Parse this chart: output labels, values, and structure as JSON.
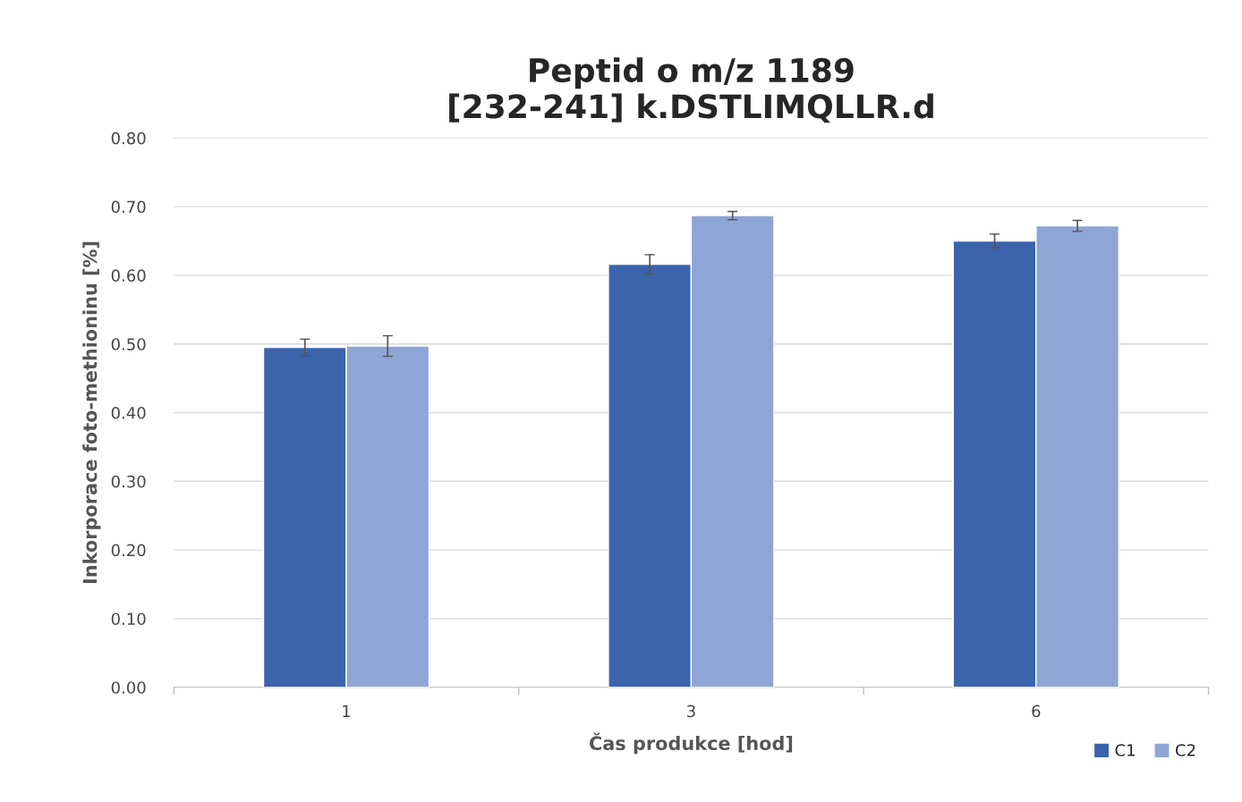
{
  "chart_data": {
    "type": "bar",
    "title": "Peptid o m/z 1189\n[232-241] k.DSTLIMQLLR.d",
    "xlabel": "Čas produkce [hod]",
    "ylabel": "Inkorporace foto-methioninu [%]",
    "categories": [
      "1",
      "3",
      "6"
    ],
    "series": [
      {
        "name": "C1",
        "color": "#3b64ad",
        "values": [
          0.495,
          0.616,
          0.65
        ],
        "errors": [
          0.012,
          0.014,
          0.01
        ]
      },
      {
        "name": "C2",
        "color": "#8fa5d6",
        "values": [
          0.497,
          0.687,
          0.672
        ],
        "errors": [
          0.015,
          0.006,
          0.008
        ]
      }
    ],
    "ylim": [
      0,
      0.8
    ],
    "yticks": [
      {
        "value": 0,
        "label": "0.00"
      },
      {
        "value": 0.1,
        "label": "0.10"
      },
      {
        "value": 0.2,
        "label": "0.20"
      },
      {
        "value": 0.3,
        "label": "0.30"
      },
      {
        "value": 0.4,
        "label": "0.40"
      },
      {
        "value": 0.5,
        "label": "0.50"
      },
      {
        "value": 0.6,
        "label": "0.60"
      },
      {
        "value": 0.7,
        "label": "0.70"
      },
      {
        "value": 0.8,
        "label": "0.80"
      }
    ],
    "grid": "y",
    "legend": "bottom right"
  }
}
